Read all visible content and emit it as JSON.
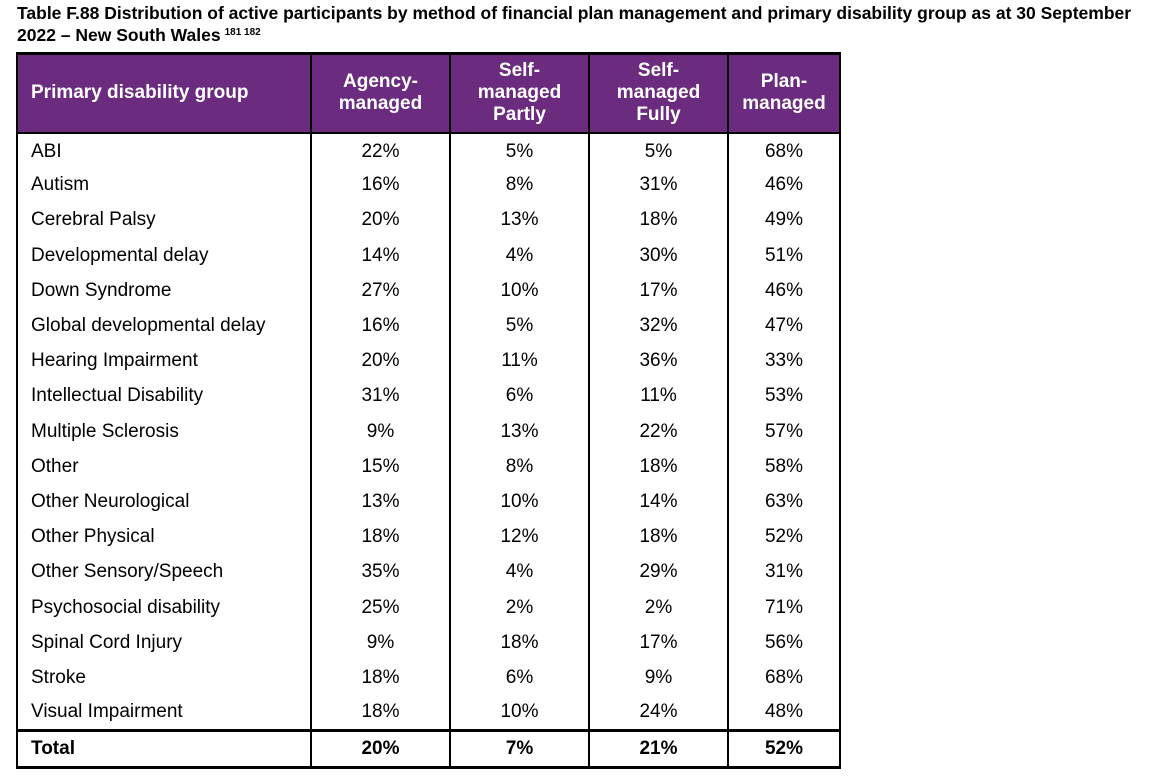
{
  "caption": {
    "text": "Table F.88 Distribution of active participants by method of financial plan management and primary disability group as at 30 September 2022 – New South Wales",
    "footnotes": "181 182"
  },
  "table": {
    "headers": [
      "Primary disability group",
      "Agency-managed",
      "Self-managed Partly",
      "Self-managed Fully",
      "Plan-managed"
    ],
    "header_lines": [
      [
        "Primary disability group"
      ],
      [
        "Agency-",
        "managed"
      ],
      [
        "Self-",
        "managed",
        "Partly"
      ],
      [
        "Self-",
        "managed",
        "Fully"
      ],
      [
        "Plan-",
        "managed"
      ]
    ],
    "rows": [
      [
        "ABI",
        "22%",
        "5%",
        "5%",
        "68%"
      ],
      [
        "Autism",
        "16%",
        "8%",
        "31%",
        "46%"
      ],
      [
        "Cerebral Palsy",
        "20%",
        "13%",
        "18%",
        "49%"
      ],
      [
        "Developmental delay",
        "14%",
        "4%",
        "30%",
        "51%"
      ],
      [
        "Down Syndrome",
        "27%",
        "10%",
        "17%",
        "46%"
      ],
      [
        "Global developmental delay",
        "16%",
        "5%",
        "32%",
        "47%"
      ],
      [
        "Hearing Impairment",
        "20%",
        "11%",
        "36%",
        "33%"
      ],
      [
        "Intellectual Disability",
        "31%",
        "6%",
        "11%",
        "53%"
      ],
      [
        "Multiple Sclerosis",
        "9%",
        "13%",
        "22%",
        "57%"
      ],
      [
        "Other",
        "15%",
        "8%",
        "18%",
        "58%"
      ],
      [
        "Other Neurological",
        "13%",
        "10%",
        "14%",
        "63%"
      ],
      [
        "Other Physical",
        "18%",
        "12%",
        "18%",
        "52%"
      ],
      [
        "Other Sensory/Speech",
        "35%",
        "4%",
        "29%",
        "31%"
      ],
      [
        "Psychosocial disability",
        "25%",
        "2%",
        "2%",
        "71%"
      ],
      [
        "Spinal Cord Injury",
        "9%",
        "18%",
        "17%",
        "56%"
      ],
      [
        "Stroke",
        "18%",
        "6%",
        "9%",
        "68%"
      ],
      [
        "Visual Impairment",
        "18%",
        "10%",
        "24%",
        "48%"
      ]
    ],
    "total": [
      "Total",
      "20%",
      "7%",
      "21%",
      "52%"
    ]
  },
  "colors": {
    "header_bg": "#6b2c7f",
    "header_text": "#ffffff",
    "border": "#000000"
  }
}
